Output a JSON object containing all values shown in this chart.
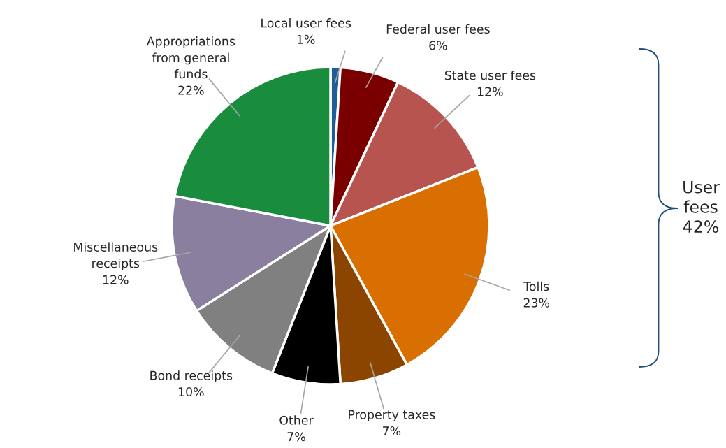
{
  "chart_data": {
    "type": "pie",
    "categories": [
      "Local user fees",
      "Federal user fees",
      "State user fees",
      "Tolls",
      "Property taxes",
      "Other",
      "Bond receipts",
      "Miscellaneous receipts",
      "Appropriations from general funds"
    ],
    "values": [
      1,
      6,
      12,
      23,
      7,
      7,
      10,
      12,
      22
    ],
    "colors": [
      "#1f5c99",
      "#7a0000",
      "#b85450",
      "#d96f00",
      "#8b4500",
      "#000000",
      "#808080",
      "#8b7fa0",
      "#1a8c3e"
    ],
    "value_labels": [
      "1%",
      "6%",
      "12%",
      "23%",
      "7%",
      "7%",
      "10%",
      "12%",
      "22%"
    ],
    "legend": false,
    "annotations": [
      "User fees 42%"
    ]
  }
}
